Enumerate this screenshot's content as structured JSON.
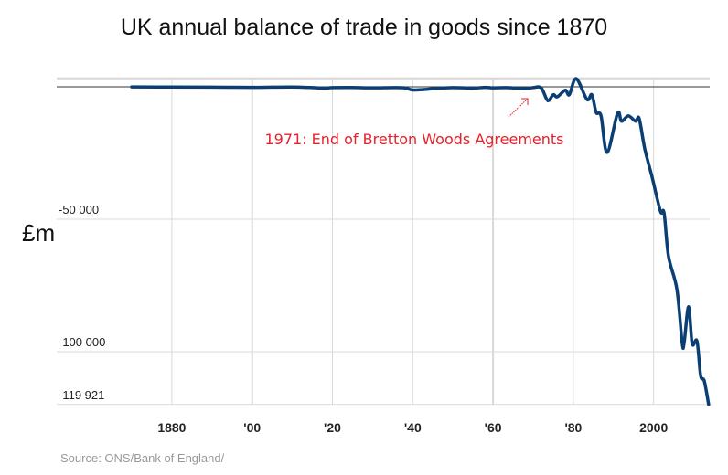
{
  "chart_data": {
    "type": "line",
    "title": "UK annual balance of trade in goods since 1870",
    "ylabel": "£m",
    "xlabel": "",
    "source": "Source: ONS/Bank of England/",
    "xlim": [
      1870,
      2014
    ],
    "ylim": [
      -119921,
      3000
    ],
    "x_ticks": [
      {
        "value": 1880,
        "label": "1880"
      },
      {
        "value": 1900,
        "label": "'00"
      },
      {
        "value": 1920,
        "label": "'20"
      },
      {
        "value": 1940,
        "label": "'40"
      },
      {
        "value": 1960,
        "label": "'60"
      },
      {
        "value": 1980,
        "label": "'80"
      },
      {
        "value": 2000,
        "label": "2000"
      }
    ],
    "y_ticks": [
      {
        "value": -50000,
        "label": "-50 000"
      },
      {
        "value": -100000,
        "label": "-100 000"
      },
      {
        "value": -119921,
        "label": "-119 921"
      }
    ],
    "grid": true,
    "line_color": "#0b3f73",
    "annotation": {
      "text": "1971: End of Bretton Woods Agreements",
      "year": 1971,
      "color": "#e8202a"
    },
    "series": [
      {
        "points": [
          [
            1870,
            -50
          ],
          [
            1880,
            -100
          ],
          [
            1890,
            -150
          ],
          [
            1900,
            -200
          ],
          [
            1905,
            -150
          ],
          [
            1910,
            -100
          ],
          [
            1915,
            -300
          ],
          [
            1918,
            -500
          ],
          [
            1920,
            -300
          ],
          [
            1925,
            -250
          ],
          [
            1930,
            -400
          ],
          [
            1935,
            -300
          ],
          [
            1938,
            -400
          ],
          [
            1940,
            -1200
          ],
          [
            1943,
            -1000
          ],
          [
            1946,
            -600
          ],
          [
            1950,
            -300
          ],
          [
            1955,
            -500
          ],
          [
            1958,
            -200
          ],
          [
            1960,
            -400
          ],
          [
            1963,
            -300
          ],
          [
            1966,
            -500
          ],
          [
            1968,
            -700
          ],
          [
            1970,
            -300
          ],
          [
            1972,
            -400
          ],
          [
            1973.6,
            -5200
          ],
          [
            1975,
            -3000
          ],
          [
            1976,
            -3800
          ],
          [
            1978,
            -1300
          ],
          [
            1979,
            -3000
          ],
          [
            1980.7,
            3100
          ],
          [
            1983.4,
            -4800
          ],
          [
            1984.6,
            -3000
          ],
          [
            1985.7,
            -9700
          ],
          [
            1986.9,
            -11000
          ],
          [
            1988.4,
            -24800
          ],
          [
            1991,
            -10000
          ],
          [
            1992,
            -13000
          ],
          [
            1993.7,
            -11000
          ],
          [
            1995.5,
            -13000
          ],
          [
            1996.4,
            -12000
          ],
          [
            1997.8,
            -23500
          ],
          [
            1999.6,
            -34000
          ],
          [
            2001.7,
            -47000
          ],
          [
            2002.6,
            -47600
          ],
          [
            2003.7,
            -64000
          ],
          [
            2005.8,
            -76500
          ],
          [
            2007.1,
            -96600
          ],
          [
            2007.6,
            -96600
          ],
          [
            2008.7,
            -83000
          ],
          [
            2009.6,
            -97000
          ],
          [
            2010.8,
            -96000
          ],
          [
            2011.7,
            -109000
          ],
          [
            2012.6,
            -111000
          ],
          [
            2013.7,
            -119921
          ]
        ]
      }
    ]
  }
}
